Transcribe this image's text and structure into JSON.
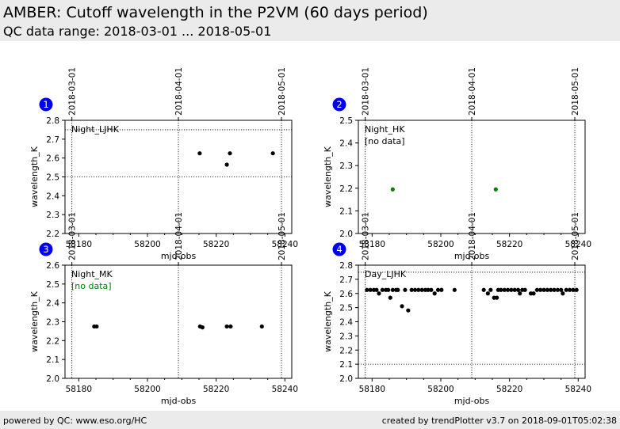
{
  "header": {
    "title": "AMBER: Cutoff wavelength in the P2VM (60 days period)",
    "subtitle": "QC data range: 2018-03-01 ... 2018-05-01"
  },
  "footer": {
    "left": "powered by QC: www.eso.org/HC",
    "right": "created by trendPlotter v3.7 on 2018-09-01T05:02:38"
  },
  "colors": {
    "marker_black": "#000000",
    "marker_green": "#008000",
    "badge": "#0000ee",
    "nodata_green": "#008000"
  },
  "chart_data": [
    {
      "type": "scatter",
      "panel_number": "1",
      "label": "Night_LJHK",
      "no_data": "",
      "xlabel": "mjd-obs",
      "ylabel": "wavelength_K",
      "xlim": [
        58176,
        58242
      ],
      "ylim": [
        2.2,
        2.8
      ],
      "xticks": [
        58180,
        58200,
        58220,
        58240
      ],
      "yticks": [
        2.2,
        2.3,
        2.4,
        2.5,
        2.6,
        2.7,
        2.8
      ],
      "top_dates": [
        "2018-03-01",
        "2018-04-01",
        "2018-05-01"
      ],
      "date_mjd": [
        58178,
        58209,
        58239
      ],
      "hlines": [
        2.5,
        2.75
      ],
      "series": [
        {
          "color": "#000000",
          "x": [
            58215.2,
            58223.1,
            58224.0,
            58236.5
          ],
          "y": [
            2.625,
            2.565,
            2.625,
            2.625
          ]
        }
      ]
    },
    {
      "type": "scatter",
      "panel_number": "2",
      "label": "Night_HK",
      "no_data": "[no data]",
      "xlabel": "mjd-obs",
      "ylabel": "wavelength_K",
      "xlim": [
        58176,
        58242
      ],
      "ylim": [
        2.0,
        2.5
      ],
      "xticks": [
        58180,
        58200,
        58220,
        58240
      ],
      "yticks": [
        2.0,
        2.1,
        2.2,
        2.3,
        2.4,
        2.5
      ],
      "top_dates": [
        "2018-03-01",
        "2018-04-01",
        "2018-05-01"
      ],
      "date_mjd": [
        58178,
        58209,
        58239
      ],
      "hlines": [],
      "series": [
        {
          "color": "#008000",
          "x": [
            58186.0,
            58216.0
          ],
          "y": [
            2.195,
            2.195
          ]
        }
      ]
    },
    {
      "type": "scatter",
      "panel_number": "3",
      "label": "Night_MK",
      "no_data": "[no data]",
      "xlabel": "mjd-obs",
      "ylabel": "wavelength_K",
      "xlim": [
        58176,
        58242
      ],
      "ylim": [
        2.0,
        2.6
      ],
      "xticks": [
        58180,
        58200,
        58220,
        58240
      ],
      "yticks": [
        2.0,
        2.1,
        2.2,
        2.3,
        2.4,
        2.5,
        2.6
      ],
      "top_dates": [
        "2018-03-01",
        "2018-04-01",
        "2018-05-01"
      ],
      "date_mjd": [
        58178,
        58209,
        58239
      ],
      "hlines": [],
      "series": [
        {
          "color": "#000000",
          "x": [
            58184.5,
            58185.2,
            58215.3,
            58216.0,
            58223.1,
            58224.2,
            58233.3
          ],
          "y": [
            2.275,
            2.275,
            2.275,
            2.27,
            2.275,
            2.275,
            2.275
          ]
        }
      ]
    },
    {
      "type": "scatter",
      "panel_number": "4",
      "label": "Day_LJHK",
      "no_data": "",
      "xlabel": "mjd-obs",
      "ylabel": "wavelength_K",
      "xlim": [
        58176,
        58242
      ],
      "ylim": [
        2.0,
        2.8
      ],
      "xticks": [
        58180,
        58200,
        58220,
        58240
      ],
      "yticks": [
        2.0,
        2.1,
        2.2,
        2.3,
        2.4,
        2.5,
        2.6,
        2.7,
        2.8
      ],
      "top_dates": [
        "2018-03-01",
        "2018-04-01",
        "2018-05-01"
      ],
      "date_mjd": [
        58178,
        58209,
        58239
      ],
      "hlines": [
        2.1,
        2.75
      ],
      "series": [
        {
          "color": "#000000",
          "x": [
            58178.5,
            58179.5,
            58180.5,
            58181.3,
            58182.0,
            58183.0,
            58184.0,
            58184.7,
            58185.3,
            58186.0,
            58187.0,
            58187.5,
            58188.7,
            58189.6,
            58190.5,
            58191.5,
            58192.5,
            58193.5,
            58194.5,
            58195.5,
            58196.3,
            58197.2,
            58198.2,
            58199.2,
            58200.2,
            58204.0,
            58212.5,
            58213.7,
            58214.5,
            58215.5,
            58216.3,
            58216.7,
            58217.5,
            58218.5,
            58219.5,
            58220.5,
            58221.5,
            58222.5,
            58223.0,
            58223.7,
            58224.5,
            58226.2,
            58227.0,
            58228.0,
            58229.0,
            58230.0,
            58231.0,
            58232.0,
            58233.0,
            58234.0,
            58235.0,
            58235.5,
            58236.5,
            58237.5,
            58238.5,
            58239.5
          ],
          "y": [
            2.625,
            2.625,
            2.625,
            2.625,
            2.6,
            2.625,
            2.625,
            2.625,
            2.57,
            2.625,
            2.625,
            2.625,
            2.51,
            2.625,
            2.48,
            2.625,
            2.625,
            2.625,
            2.625,
            2.625,
            2.625,
            2.625,
            2.6,
            2.625,
            2.625,
            2.625,
            2.625,
            2.6,
            2.625,
            2.57,
            2.57,
            2.625,
            2.625,
            2.625,
            2.625,
            2.625,
            2.625,
            2.625,
            2.6,
            2.625,
            2.625,
            2.6,
            2.6,
            2.625,
            2.625,
            2.625,
            2.625,
            2.625,
            2.625,
            2.625,
            2.625,
            2.6,
            2.625,
            2.625,
            2.625,
            2.625
          ]
        }
      ]
    }
  ]
}
